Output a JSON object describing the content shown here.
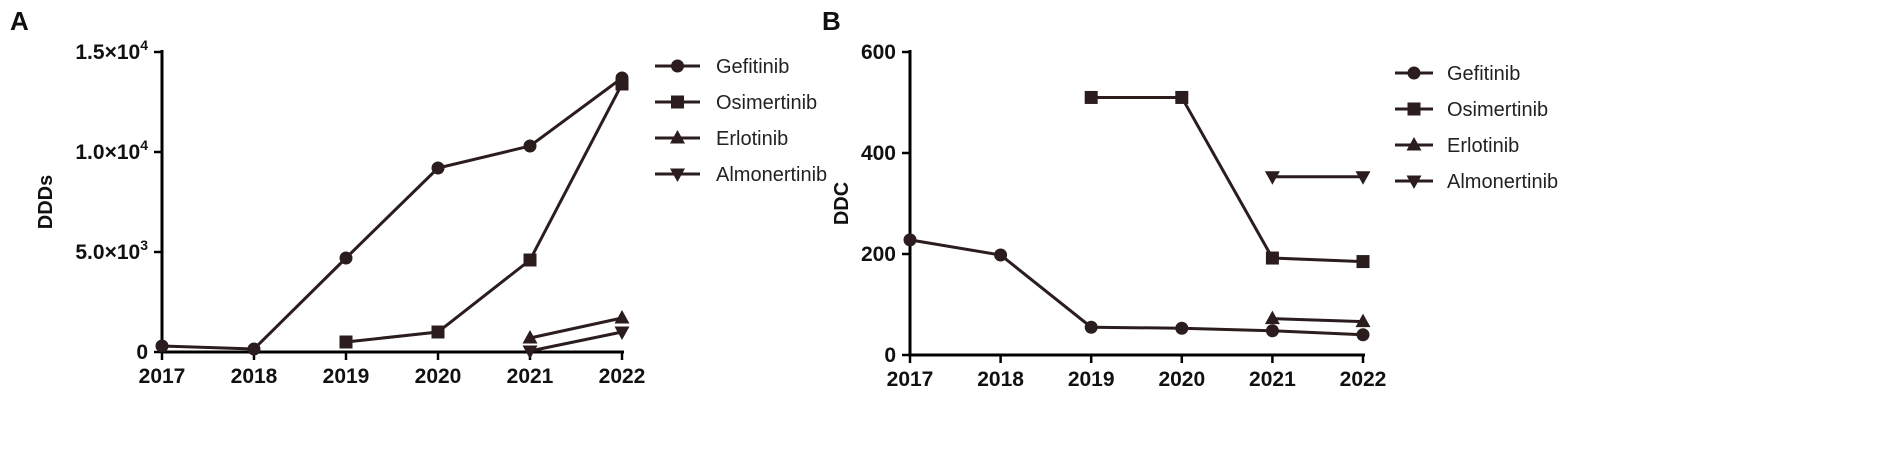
{
  "chart_data": [
    {
      "type": "line",
      "panel_label": "A",
      "ylabel": "DDDs",
      "xlabel": "",
      "x": [
        "2017",
        "2018",
        "2019",
        "2020",
        "2021",
        "2022"
      ],
      "ylim": [
        0,
        15000
      ],
      "yticks": [
        {
          "value": 0,
          "label": "0"
        },
        {
          "value": 5000,
          "label": "5.0×10",
          "exp": "3"
        },
        {
          "value": 10000,
          "label": "1.0×10",
          "exp": "4"
        },
        {
          "value": 15000,
          "label": "1.5×10",
          "exp": "4"
        }
      ],
      "legend_position": "right",
      "series": [
        {
          "name": "Gefitinib",
          "marker": "circle",
          "values": [
            300,
            150,
            4700,
            9200,
            10300,
            13700
          ]
        },
        {
          "name": "Osimertinib",
          "marker": "square",
          "values": [
            null,
            null,
            500,
            1000,
            4600,
            13400
          ]
        },
        {
          "name": "Erlotinib",
          "marker": "triangle-up",
          "values": [
            null,
            null,
            null,
            null,
            700,
            1700
          ]
        },
        {
          "name": "Almonertinib",
          "marker": "triangle-down",
          "values": [
            null,
            null,
            null,
            null,
            50,
            1000
          ]
        }
      ]
    },
    {
      "type": "line",
      "panel_label": "B",
      "ylabel": "DDC",
      "xlabel": "",
      "x": [
        "2017",
        "2018",
        "2019",
        "2020",
        "2021",
        "2022"
      ],
      "ylim": [
        0,
        600
      ],
      "yticks": [
        {
          "value": 0,
          "label": "0"
        },
        {
          "value": 200,
          "label": "200"
        },
        {
          "value": 400,
          "label": "400"
        },
        {
          "value": 600,
          "label": "600"
        }
      ],
      "legend_position": "right",
      "series": [
        {
          "name": "Gefitinib",
          "marker": "circle",
          "values": [
            228,
            198,
            55,
            53,
            48,
            40
          ]
        },
        {
          "name": "Osimertinib",
          "marker": "square",
          "values": [
            null,
            null,
            510,
            510,
            192,
            185
          ]
        },
        {
          "name": "Erlotinib",
          "marker": "triangle-up",
          "values": [
            null,
            null,
            null,
            null,
            72,
            66
          ]
        },
        {
          "name": "Almonertinib",
          "marker": "triangle-down",
          "values": [
            null,
            null,
            null,
            null,
            353,
            353
          ]
        }
      ]
    }
  ]
}
